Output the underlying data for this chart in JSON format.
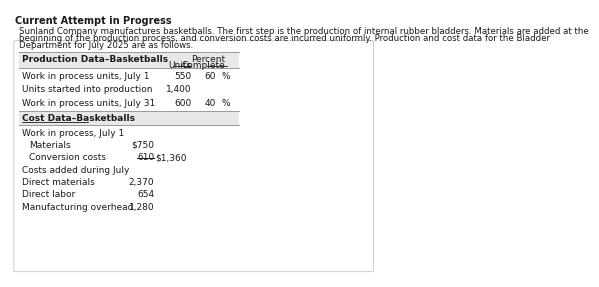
{
  "header": "Current Attempt in Progress",
  "intro_line1": "Sunland Company manufactures basketballs. The first step is the production of internal rubber bladders. Materials are added at the",
  "intro_line2": "beginning of the production process, and conversion costs are incurred uniformly. Production and cost data for the Bladder",
  "intro_line3": "Department for July 2025 are as follows.",
  "prod_header": "Production Data–Basketballs",
  "col_units_label": "Units",
  "col_pct_label1": "Percent",
  "col_pct_label2": "Complete",
  "prod_rows": [
    {
      "label": "Work in process units, July 1",
      "units": "550",
      "pct": "60",
      "pct_sign": "%"
    },
    {
      "label": "Units started into production",
      "units": "1,400",
      "pct": "",
      "pct_sign": ""
    },
    {
      "label": "Work in process units, July 31",
      "units": "600",
      "pct": "40",
      "pct_sign": "%"
    }
  ],
  "cost_header": "Cost Data–Basketballs",
  "cost_rows": [
    {
      "label": "Work in process, July 1",
      "col1": "",
      "col2": "",
      "indent": 0,
      "underline1": false
    },
    {
      "label": "Materials",
      "col1": "$750",
      "col2": "",
      "indent": 1,
      "underline1": false
    },
    {
      "label": "Conversion costs",
      "col1": "610",
      "col2": "$1,360",
      "indent": 1,
      "underline1": true
    },
    {
      "label": "Costs added during July",
      "col1": "",
      "col2": "",
      "indent": 0,
      "underline1": false
    },
    {
      "label": "Direct materials",
      "col1": "2,370",
      "col2": "",
      "indent": 0,
      "underline1": false
    },
    {
      "label": "Direct labor",
      "col1": "654",
      "col2": "",
      "indent": 0,
      "underline1": false
    },
    {
      "label": "Manufacturing overhead",
      "col1": "1,280",
      "col2": "",
      "indent": 0,
      "underline1": false
    }
  ],
  "bg_color": "#ffffff",
  "panel_bg": "#ffffff",
  "panel_border": "#cccccc",
  "header_bg": "#e8e8e8",
  "text_color": "#1a1a1a",
  "fs_header": 7.0,
  "fs_intro": 6.2,
  "fs_table": 6.5,
  "fs_table_bold": 6.5
}
